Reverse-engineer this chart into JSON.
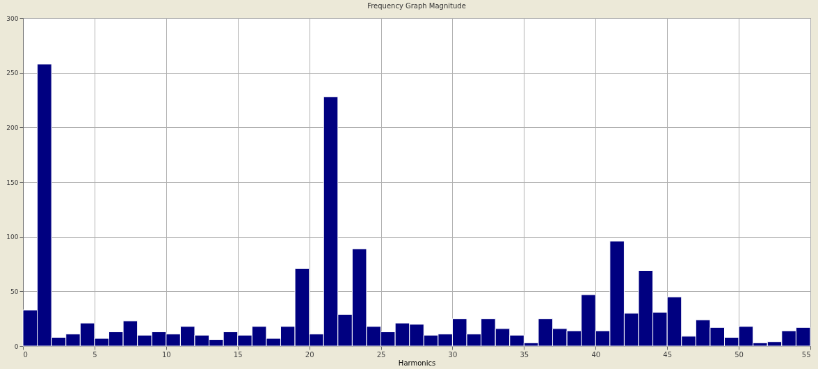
{
  "chart_data": {
    "type": "histogram",
    "title": "Frequency Graph Magnitude",
    "xlabel": "Harmonics",
    "bins": [
      0,
      1,
      2,
      3,
      4,
      5,
      6,
      7,
      8,
      9,
      10,
      11,
      12,
      13,
      14,
      15,
      16,
      17,
      18,
      19,
      20,
      21,
      22,
      23,
      24,
      25,
      26,
      27,
      28,
      29,
      30,
      31,
      32,
      33,
      34,
      35,
      36,
      37,
      38,
      39,
      40,
      41,
      42,
      43,
      44,
      45,
      46,
      47,
      48,
      49,
      50,
      51,
      52,
      53,
      54,
      55
    ],
    "values": [
      33,
      258,
      8,
      11,
      21,
      7,
      13,
      23,
      10,
      13,
      11,
      18,
      10,
      6,
      13,
      10,
      18,
      7,
      18,
      71,
      11,
      228,
      29,
      89,
      18,
      13,
      21,
      20,
      10,
      11,
      25,
      11,
      25,
      16,
      10,
      3,
      25,
      16,
      14,
      47,
      14,
      96,
      30,
      69,
      31,
      45,
      9,
      24,
      17,
      8,
      18,
      3,
      4,
      14,
      17
    ],
    "color": "#000080",
    "xlim": [
      0,
      55
    ],
    "xticks": [
      0,
      5,
      10,
      15,
      20,
      25,
      30,
      35,
      40,
      45,
      50,
      55
    ],
    "ylim": [
      0,
      300
    ],
    "yticks": [
      0,
      50,
      100,
      150,
      200,
      250,
      300
    ],
    "grid": true
  }
}
